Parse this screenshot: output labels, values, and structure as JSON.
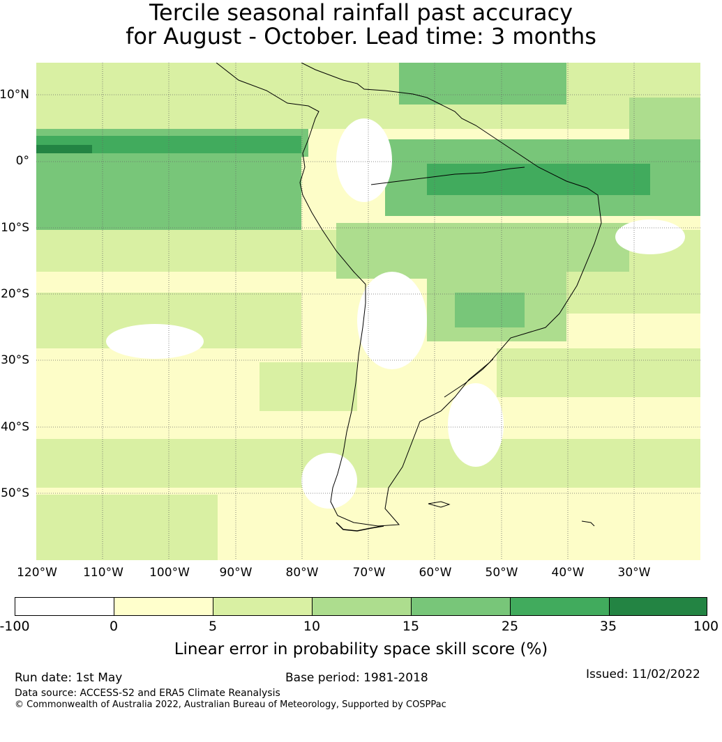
{
  "title": {
    "line1": "Tercile seasonal rainfall past accuracy",
    "line2": "for August - October. Lead time: 3 months"
  },
  "map": {
    "region": "South America",
    "lat_labels": [
      "10°N",
      "0°",
      "10°S",
      "20°S",
      "30°S",
      "40°S",
      "50°S"
    ],
    "lon_labels": [
      "120°W",
      "110°W",
      "100°W",
      "90°W",
      "80°W",
      "70°W",
      "60°W",
      "50°W",
      "40°W",
      "30°W"
    ],
    "land_outline_color": "#000000",
    "gridline_style": "dotted grey"
  },
  "legend": {
    "title": "Linear error in probability space skill score (%)",
    "ticks": [
      "-100",
      "0",
      "5",
      "10",
      "15",
      "25",
      "35",
      "100"
    ],
    "colors": [
      "#ffffff",
      "#ffffcc",
      "#d9f0a3",
      "#addd8e",
      "#78c679",
      "#41ab5d",
      "#238443"
    ]
  },
  "footer": {
    "run_date": "Run date: 1st May",
    "base_period": "Base period: 1981-2018",
    "issued": "Issued: 11/02/2022",
    "data_source": "Data source: ACCESS-S2 and ERA5 Climate Reanalysis",
    "copyright": "© Commonwealth of Australia 2022, Australian Bureau of Meteorology, Supported by COSPPac"
  }
}
